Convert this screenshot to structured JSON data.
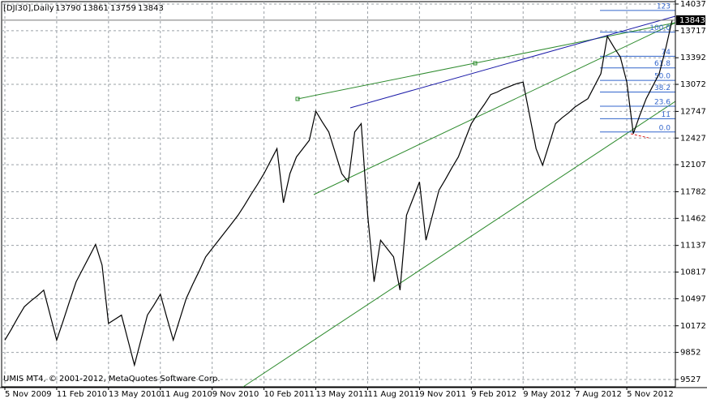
{
  "chart_data": {
    "type": "line",
    "title": "[DJI30],Daily",
    "ohlc": {
      "open": 13790,
      "high": 13861,
      "low": 13759,
      "close": 13843
    },
    "footer": "UMIS MT4, © 2001-2012, MetaQuotes Software Corp.",
    "categories": [
      "5 Nov 2009",
      null,
      null,
      null,
      null,
      null,
      null,
      null,
      "11 Feb 2010",
      null,
      null,
      null,
      null,
      null,
      null,
      null,
      "13 May 2010",
      null,
      null,
      null,
      null,
      null,
      null,
      null,
      "11 Aug 2010",
      null,
      null,
      null,
      null,
      null,
      null,
      null,
      "9 Nov 2010",
      null,
      null,
      null,
      null,
      null,
      null,
      null,
      "10 Feb 2011",
      null,
      null,
      null,
      null,
      null,
      null,
      null,
      "13 May 2011",
      null,
      null,
      null,
      null,
      null,
      null,
      null,
      "11 Aug 2011",
      null,
      null,
      null,
      null,
      null,
      null,
      null,
      "9 Nov 2011",
      null,
      null,
      null,
      null,
      null,
      null,
      null,
      "9 Feb 2012",
      null,
      null,
      null,
      null,
      null,
      null,
      null,
      "9 May 2012",
      null,
      null,
      null,
      null,
      null,
      null,
      null,
      "7 Aug 2012",
      null,
      null,
      null,
      null,
      null,
      null,
      null,
      "5 Nov 2012",
      null,
      null,
      null,
      null,
      null,
      null,
      null
    ],
    "series": [
      {
        "name": "DJI30",
        "color": "#000000",
        "values": [
          10000,
          10130,
          10270,
          10400,
          10470,
          10530,
          10600,
          10300,
          10000,
          10230,
          10470,
          10700,
          10850,
          11000,
          11150,
          10900,
          10200,
          10250,
          10300,
          10000,
          9700,
          10000,
          10300,
          10420,
          10550,
          10270,
          10000,
          10250,
          10500,
          10670,
          10830,
          11000,
          11100,
          11200,
          11300,
          11400,
          11500,
          11620,
          11750,
          11870,
          12000,
          12150,
          12300,
          11650,
          12000,
          12200,
          12300,
          12400,
          12750,
          12620,
          12500,
          12250,
          12000,
          11900,
          12500,
          12600,
          11500,
          10700,
          11200,
          11100,
          11000,
          10600,
          11500,
          11700,
          11900,
          11200,
          11500,
          11800,
          11930,
          12070,
          12200,
          12400,
          12600,
          12720,
          12830,
          12950,
          12980,
          13020,
          13050,
          13080,
          13100,
          12700,
          12300,
          12100,
          12350,
          12600,
          12670,
          12730,
          12800,
          12850,
          12900,
          13050,
          13200,
          13650,
          13520,
          13400,
          13100,
          12480,
          12700,
          12900,
          13050,
          13200,
          13500,
          13843
        ]
      }
    ],
    "fib_levels": [
      {
        "label": "123",
        "price": 13960
      },
      {
        "label": "100.0",
        "price": 13700
      },
      {
        "label": "74",
        "price": 13410
      },
      {
        "label": "61.8",
        "price": 13270
      },
      {
        "label": "50.0",
        "price": 13120
      },
      {
        "label": "38.2",
        "price": 12980
      },
      {
        "label": "23.6",
        "price": 12810
      },
      {
        "label": "11",
        "price": 12660
      },
      {
        "label": "0.0",
        "price": 12500
      }
    ],
    "ylim": [
      9439,
      14066
    ],
    "yticks": [
      9527,
      9852,
      10172,
      10497,
      10817,
      11137,
      11462,
      11782,
      12107,
      12427,
      12747,
      13072,
      13392,
      13717,
      14037
    ],
    "grid": true
  }
}
